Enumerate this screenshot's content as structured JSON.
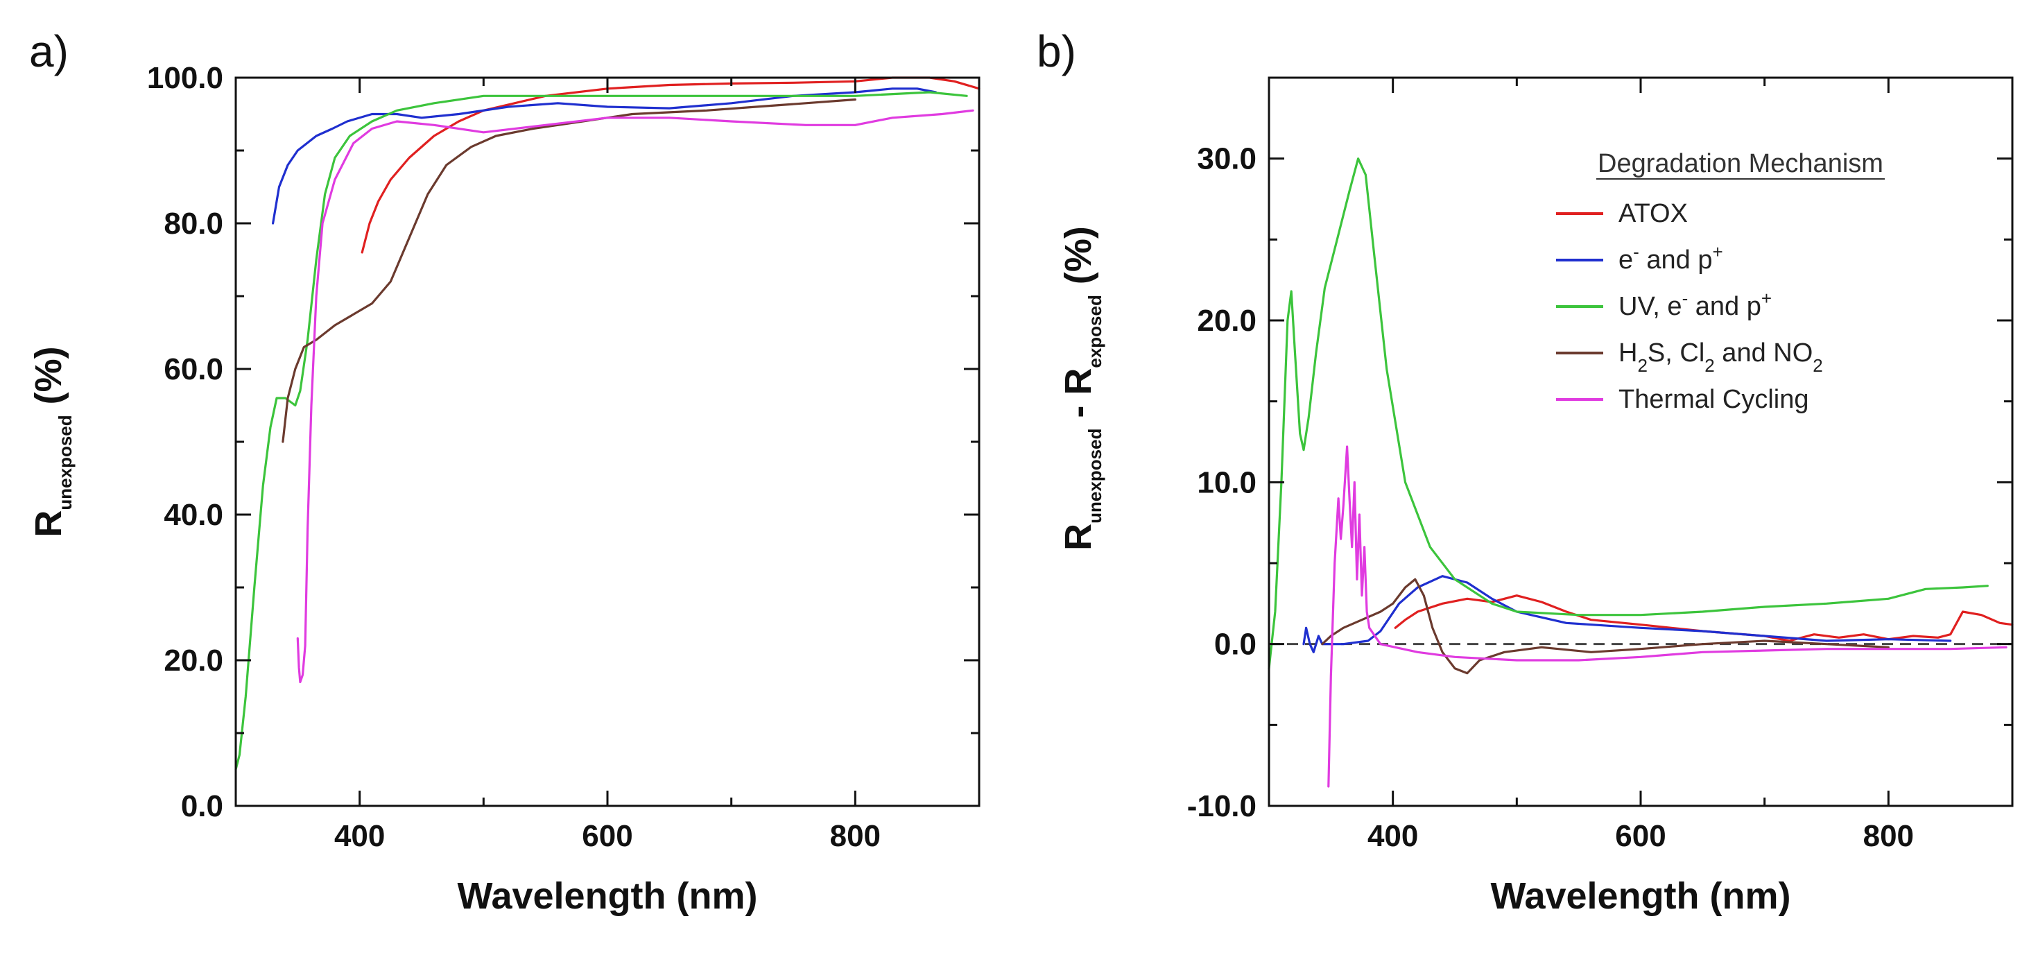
{
  "panels": {
    "a": {
      "label": "a)"
    },
    "b": {
      "label": "b)"
    }
  },
  "colors": {
    "ATOX": "#e02020",
    "ep": "#1f2fcf",
    "UVep": "#3cc43c",
    "H2S": "#6b3a2e",
    "Thermal": "#e03be0"
  },
  "legend": {
    "title": "Degradation Mechanism",
    "items": [
      {
        "key": "ATOX",
        "parts": [
          [
            "ATOX",
            ""
          ]
        ]
      },
      {
        "key": "ep",
        "parts": [
          [
            "e",
            ""
          ],
          [
            "-",
            "sup"
          ],
          [
            " and p",
            ""
          ],
          [
            "+",
            "sup"
          ]
        ]
      },
      {
        "key": "UVep",
        "parts": [
          [
            "UV, e",
            ""
          ],
          [
            "-",
            "sup"
          ],
          [
            " and p",
            ""
          ],
          [
            "+",
            "sup"
          ]
        ]
      },
      {
        "key": "H2S",
        "parts": [
          [
            "H",
            ""
          ],
          [
            "2",
            "sub"
          ],
          [
            "S, Cl",
            ""
          ],
          [
            "2",
            "sub"
          ],
          [
            " and NO",
            ""
          ],
          [
            "2",
            "sub"
          ]
        ]
      },
      {
        "key": "Thermal",
        "parts": [
          [
            "Thermal Cycling",
            ""
          ]
        ]
      }
    ]
  },
  "chart_data": [
    {
      "panel": "a",
      "type": "line",
      "xlabel": "Wavelength (nm)",
      "ylabel_main": "R",
      "ylabel_sub": "unexposed",
      "ylabel_tail": " (%)",
      "xlim": [
        300,
        900
      ],
      "ylim": [
        0,
        100
      ],
      "xticks": [
        400,
        600,
        800
      ],
      "yticks": [
        0,
        20,
        40,
        60,
        80,
        100
      ],
      "ytick_labels": [
        "0.0",
        "20.0",
        "40.0",
        "60.0",
        "80.0",
        "100.0"
      ],
      "series": [
        {
          "name": "ATOX",
          "key": "ATOX",
          "points": [
            [
              402,
              76
            ],
            [
              408,
              80
            ],
            [
              415,
              83
            ],
            [
              425,
              86
            ],
            [
              440,
              89
            ],
            [
              460,
              92
            ],
            [
              480,
              94
            ],
            [
              500,
              95.5
            ],
            [
              550,
              97.5
            ],
            [
              600,
              98.5
            ],
            [
              650,
              99
            ],
            [
              700,
              99.2
            ],
            [
              750,
              99.3
            ],
            [
              800,
              99.5
            ],
            [
              830,
              100
            ],
            [
              860,
              100
            ],
            [
              880,
              99.5
            ],
            [
              900,
              98.5
            ]
          ]
        },
        {
          "name": "e- and p+",
          "key": "ep",
          "points": [
            [
              330,
              80
            ],
            [
              335,
              85
            ],
            [
              342,
              88
            ],
            [
              350,
              90
            ],
            [
              365,
              92
            ],
            [
              378,
              93
            ],
            [
              390,
              94
            ],
            [
              410,
              95
            ],
            [
              430,
              95
            ],
            [
              450,
              94.5
            ],
            [
              480,
              95
            ],
            [
              520,
              96
            ],
            [
              560,
              96.5
            ],
            [
              600,
              96
            ],
            [
              650,
              95.8
            ],
            [
              700,
              96.5
            ],
            [
              750,
              97.5
            ],
            [
              800,
              98
            ],
            [
              830,
              98.5
            ],
            [
              850,
              98.5
            ],
            [
              865,
              98
            ]
          ]
        },
        {
          "name": "UV, e- and p+",
          "key": "UVep",
          "points": [
            [
              300,
              5
            ],
            [
              303,
              7
            ],
            [
              308,
              15
            ],
            [
              315,
              30
            ],
            [
              322,
              44
            ],
            [
              328,
              52
            ],
            [
              333,
              56
            ],
            [
              340,
              56
            ],
            [
              348,
              55
            ],
            [
              352,
              57
            ],
            [
              358,
              64
            ],
            [
              365,
              75
            ],
            [
              372,
              84
            ],
            [
              380,
              89
            ],
            [
              392,
              92
            ],
            [
              410,
              94
            ],
            [
              430,
              95.5
            ],
            [
              460,
              96.5
            ],
            [
              500,
              97.5
            ],
            [
              600,
              97.5
            ],
            [
              700,
              97.5
            ],
            [
              800,
              97.5
            ],
            [
              860,
              98
            ],
            [
              890,
              97.5
            ]
          ]
        },
        {
          "name": "H2S, Cl2 and NO2",
          "key": "H2S",
          "points": [
            [
              338,
              50
            ],
            [
              342,
              56
            ],
            [
              348,
              60
            ],
            [
              355,
              63
            ],
            [
              365,
              64
            ],
            [
              380,
              66
            ],
            [
              395,
              67.5
            ],
            [
              410,
              69
            ],
            [
              425,
              72
            ],
            [
              440,
              78
            ],
            [
              455,
              84
            ],
            [
              470,
              88
            ],
            [
              490,
              90.5
            ],
            [
              510,
              92
            ],
            [
              540,
              93
            ],
            [
              580,
              94
            ],
            [
              620,
              95
            ],
            [
              680,
              95.5
            ],
            [
              720,
              96
            ],
            [
              760,
              96.5
            ],
            [
              800,
              97
            ]
          ]
        },
        {
          "name": "Thermal Cycling",
          "key": "Thermal",
          "points": [
            [
              350,
              23
            ],
            [
              351,
              19
            ],
            [
              352,
              17
            ],
            [
              354,
              18
            ],
            [
              356,
              22
            ],
            [
              358,
              38
            ],
            [
              361,
              55
            ],
            [
              365,
              70
            ],
            [
              370,
              80
            ],
            [
              380,
              86
            ],
            [
              395,
              91
            ],
            [
              410,
              93
            ],
            [
              430,
              94
            ],
            [
              460,
              93.5
            ],
            [
              500,
              92.5
            ],
            [
              550,
              93.5
            ],
            [
              600,
              94.5
            ],
            [
              650,
              94.5
            ],
            [
              700,
              94
            ],
            [
              760,
              93.5
            ],
            [
              800,
              93.5
            ],
            [
              830,
              94.5
            ],
            [
              870,
              95
            ],
            [
              895,
              95.5
            ]
          ]
        }
      ]
    },
    {
      "panel": "b",
      "type": "line",
      "xlabel": "Wavelength (nm)",
      "ylabel_parts": [
        [
          "R",
          ""
        ],
        [
          "unexposed",
          "sub"
        ],
        [
          " - R",
          ""
        ],
        [
          "exposed",
          "sub"
        ],
        [
          " (%)",
          ""
        ]
      ],
      "xlim": [
        300,
        900
      ],
      "ylim": [
        -10,
        35
      ],
      "xticks": [
        400,
        600,
        800
      ],
      "yticks": [
        -10,
        0,
        10,
        20,
        30
      ],
      "ytick_labels": [
        "-10.0",
        "0.0",
        "10.0",
        "20.0",
        "30.0"
      ],
      "reference_line": 0,
      "series": [
        {
          "name": "ATOX",
          "key": "ATOX",
          "points": [
            [
              402,
              1
            ],
            [
              410,
              1.5
            ],
            [
              420,
              2
            ],
            [
              440,
              2.5
            ],
            [
              460,
              2.8
            ],
            [
              480,
              2.6
            ],
            [
              500,
              3
            ],
            [
              520,
              2.6
            ],
            [
              540,
              2
            ],
            [
              560,
              1.5
            ],
            [
              600,
              1.2
            ],
            [
              650,
              0.8
            ],
            [
              700,
              0.5
            ],
            [
              720,
              0.2
            ],
            [
              740,
              0.6
            ],
            [
              760,
              0.4
            ],
            [
              780,
              0.6
            ],
            [
              800,
              0.3
            ],
            [
              820,
              0.5
            ],
            [
              840,
              0.4
            ],
            [
              850,
              0.6
            ],
            [
              860,
              2
            ],
            [
              875,
              1.8
            ],
            [
              890,
              1.3
            ],
            [
              900,
              1.2
            ]
          ]
        },
        {
          "name": "e- and p+",
          "key": "ep",
          "points": [
            [
              328,
              0
            ],
            [
              330,
              1
            ],
            [
              333,
              0
            ],
            [
              336,
              -0.5
            ],
            [
              340,
              0.5
            ],
            [
              343,
              0
            ],
            [
              360,
              0
            ],
            [
              380,
              0.2
            ],
            [
              390,
              0.8
            ],
            [
              405,
              2.5
            ],
            [
              420,
              3.5
            ],
            [
              440,
              4.2
            ],
            [
              460,
              3.8
            ],
            [
              480,
              2.8
            ],
            [
              500,
              2
            ],
            [
              540,
              1.3
            ],
            [
              600,
              1
            ],
            [
              650,
              0.8
            ],
            [
              700,
              0.5
            ],
            [
              750,
              0.2
            ],
            [
              800,
              0.3
            ],
            [
              850,
              0.2
            ]
          ]
        },
        {
          "name": "UV, e- and p+",
          "key": "UVep",
          "points": [
            [
              300,
              -1.5
            ],
            [
              305,
              2
            ],
            [
              310,
              10
            ],
            [
              315,
              20
            ],
            [
              318,
              21.8
            ],
            [
              321,
              18
            ],
            [
              325,
              13
            ],
            [
              328,
              12
            ],
            [
              332,
              14
            ],
            [
              338,
              18
            ],
            [
              345,
              22
            ],
            [
              355,
              25
            ],
            [
              365,
              28
            ],
            [
              372,
              30
            ],
            [
              378,
              29
            ],
            [
              385,
              24
            ],
            [
              395,
              17
            ],
            [
              410,
              10
            ],
            [
              430,
              6
            ],
            [
              450,
              4
            ],
            [
              480,
              2.5
            ],
            [
              500,
              2
            ],
            [
              550,
              1.8
            ],
            [
              600,
              1.8
            ],
            [
              650,
              2
            ],
            [
              700,
              2.3
            ],
            [
              750,
              2.5
            ],
            [
              800,
              2.8
            ],
            [
              830,
              3.4
            ],
            [
              860,
              3.5
            ],
            [
              880,
              3.6
            ]
          ]
        },
        {
          "name": "H2S, Cl2 and NO2",
          "key": "H2S",
          "points": [
            [
              343,
              0
            ],
            [
              350,
              0.5
            ],
            [
              360,
              1
            ],
            [
              375,
              1.5
            ],
            [
              390,
              2
            ],
            [
              400,
              2.5
            ],
            [
              410,
              3.5
            ],
            [
              418,
              4
            ],
            [
              425,
              3
            ],
            [
              432,
              1
            ],
            [
              440,
              -0.5
            ],
            [
              450,
              -1.5
            ],
            [
              460,
              -1.8
            ],
            [
              470,
              -1
            ],
            [
              490,
              -0.5
            ],
            [
              520,
              -0.2
            ],
            [
              560,
              -0.5
            ],
            [
              600,
              -0.3
            ],
            [
              650,
              0
            ],
            [
              700,
              0.2
            ],
            [
              750,
              0
            ],
            [
              800,
              -0.2
            ]
          ]
        },
        {
          "name": "Thermal Cycling",
          "key": "Thermal",
          "points": [
            [
              348,
              -8.8
            ],
            [
              350,
              -2
            ],
            [
              353,
              5
            ],
            [
              356,
              9
            ],
            [
              358,
              6.5
            ],
            [
              360,
              8.5
            ],
            [
              363,
              12.2
            ],
            [
              365,
              9
            ],
            [
              367,
              6
            ],
            [
              369,
              10
            ],
            [
              371,
              4
            ],
            [
              373,
              8
            ],
            [
              375,
              3
            ],
            [
              377,
              6
            ],
            [
              379,
              2
            ],
            [
              381,
              1
            ],
            [
              390,
              0
            ],
            [
              420,
              -0.5
            ],
            [
              450,
              -0.8
            ],
            [
              500,
              -1
            ],
            [
              550,
              -1
            ],
            [
              600,
              -0.8
            ],
            [
              650,
              -0.5
            ],
            [
              700,
              -0.4
            ],
            [
              750,
              -0.3
            ],
            [
              800,
              -0.3
            ],
            [
              850,
              -0.3
            ],
            [
              895,
              -0.2
            ]
          ]
        }
      ]
    }
  ]
}
